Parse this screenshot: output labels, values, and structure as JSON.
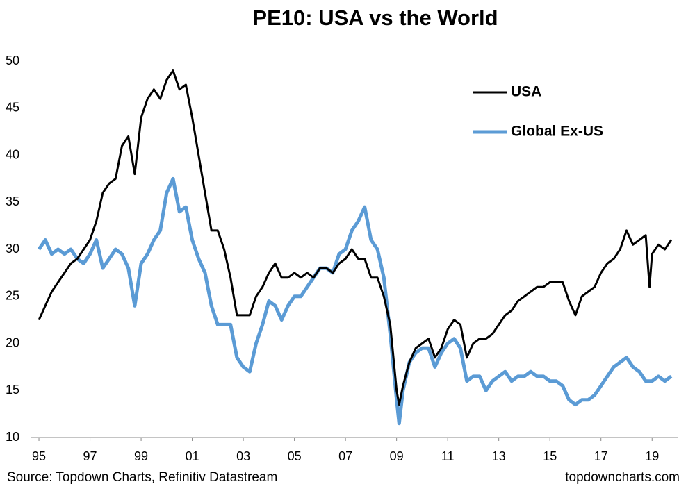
{
  "chart_data": {
    "type": "line",
    "title": "PE10: USA vs the World",
    "source": "Source: Topdown Charts, Refinitiv Datastream",
    "watermark": "topdowncharts.com",
    "legend": "top-right",
    "x": [
      1995.0,
      1995.25,
      1995.5,
      1995.75,
      1996.0,
      1996.25,
      1996.5,
      1996.75,
      1997.0,
      1997.25,
      1997.5,
      1997.75,
      1998.0,
      1998.25,
      1998.5,
      1998.75,
      1999.0,
      1999.25,
      1999.5,
      1999.75,
      2000.0,
      2000.25,
      2000.5,
      2000.75,
      2001.0,
      2001.25,
      2001.5,
      2001.75,
      2002.0,
      2002.25,
      2002.5,
      2002.75,
      2003.0,
      2003.25,
      2003.5,
      2003.75,
      2004.0,
      2004.25,
      2004.5,
      2004.75,
      2005.0,
      2005.25,
      2005.5,
      2005.75,
      2006.0,
      2006.25,
      2006.5,
      2006.75,
      2007.0,
      2007.25,
      2007.5,
      2007.75,
      2008.0,
      2008.25,
      2008.5,
      2008.75,
      2009.0,
      2009.1,
      2009.25,
      2009.5,
      2009.75,
      2010.0,
      2010.25,
      2010.5,
      2010.75,
      2011.0,
      2011.25,
      2011.5,
      2011.75,
      2012.0,
      2012.25,
      2012.5,
      2012.75,
      2013.0,
      2013.25,
      2013.5,
      2013.75,
      2014.0,
      2014.25,
      2014.5,
      2014.75,
      2015.0,
      2015.25,
      2015.5,
      2015.75,
      2016.0,
      2016.25,
      2016.5,
      2016.75,
      2017.0,
      2017.25,
      2017.5,
      2017.75,
      2018.0,
      2018.25,
      2018.5,
      2018.75,
      2018.9,
      2019.0,
      2019.25,
      2019.5,
      2019.75
    ],
    "series": [
      {
        "name": "USA",
        "color": "#000000",
        "width": 3,
        "values": [
          22.5,
          24,
          25.5,
          26.5,
          27.5,
          28.5,
          29,
          30,
          31,
          33,
          36,
          37,
          37.5,
          41,
          42,
          38,
          44,
          46,
          47,
          46,
          48,
          49,
          47,
          47.5,
          44,
          40,
          36,
          32,
          32,
          30,
          27,
          23,
          23,
          23,
          25,
          26,
          27.5,
          28.5,
          27,
          27,
          27.5,
          27,
          27.5,
          27,
          28,
          28,
          27.5,
          28.5,
          29,
          30,
          29,
          29,
          27,
          27,
          25,
          22,
          15,
          13.5,
          15.5,
          18,
          19.5,
          20,
          20.5,
          18.5,
          19.5,
          21.5,
          22.5,
          22,
          18.5,
          20,
          20.5,
          20.5,
          21,
          22,
          23,
          23.5,
          24.5,
          25,
          25.5,
          26,
          26,
          26.5,
          26.5,
          26.5,
          24.5,
          23,
          25,
          25.5,
          26,
          27.5,
          28.5,
          29,
          30,
          32,
          30.5,
          31,
          31.5,
          26,
          29.5,
          30.5,
          30,
          31
        ]
      },
      {
        "name": "Global Ex-US",
        "color": "#5b9bd5",
        "width": 5,
        "values": [
          30,
          31,
          29.5,
          30,
          29.5,
          30,
          29,
          28.5,
          29.5,
          31,
          28,
          29,
          30,
          29.5,
          28,
          24,
          28.5,
          29.5,
          31,
          32,
          36,
          37.5,
          34,
          34.5,
          31,
          29,
          27.5,
          24,
          22,
          22,
          22,
          18.5,
          17.5,
          17,
          20,
          22,
          24.5,
          24,
          22.5,
          24,
          25,
          25,
          26,
          27,
          28,
          28,
          27.5,
          29.5,
          30,
          32,
          33,
          34.5,
          31,
          30,
          27,
          21,
          14,
          11.5,
          15,
          18,
          19,
          19.5,
          19.5,
          17.5,
          19,
          20,
          20.5,
          19.5,
          16,
          16.5,
          16.5,
          15,
          16,
          16.5,
          17,
          16,
          16.5,
          16.5,
          17,
          16.5,
          16.5,
          16,
          16,
          15.5,
          14,
          13.5,
          14,
          14,
          14.5,
          15.5,
          16.5,
          17.5,
          18,
          18.5,
          17.5,
          17,
          16,
          16,
          16,
          16.5,
          16,
          16.5
        ]
      }
    ],
    "xlim": [
      1994.7,
      2020.0
    ],
    "xticks": [
      {
        "value": 1995,
        "label": "95"
      },
      {
        "value": 1997,
        "label": "97"
      },
      {
        "value": 1999,
        "label": "99"
      },
      {
        "value": 2001,
        "label": "01"
      },
      {
        "value": 2003,
        "label": "03"
      },
      {
        "value": 2005,
        "label": "05"
      },
      {
        "value": 2007,
        "label": "07"
      },
      {
        "value": 2009,
        "label": "09"
      },
      {
        "value": 2011,
        "label": "11"
      },
      {
        "value": 2013,
        "label": "13"
      },
      {
        "value": 2015,
        "label": "15"
      },
      {
        "value": 2017,
        "label": "17"
      },
      {
        "value": 2019,
        "label": "19"
      }
    ],
    "ylim": [
      10,
      51
    ],
    "yticks": [
      10,
      15,
      20,
      25,
      30,
      35,
      40,
      45,
      50
    ],
    "grid": false
  }
}
